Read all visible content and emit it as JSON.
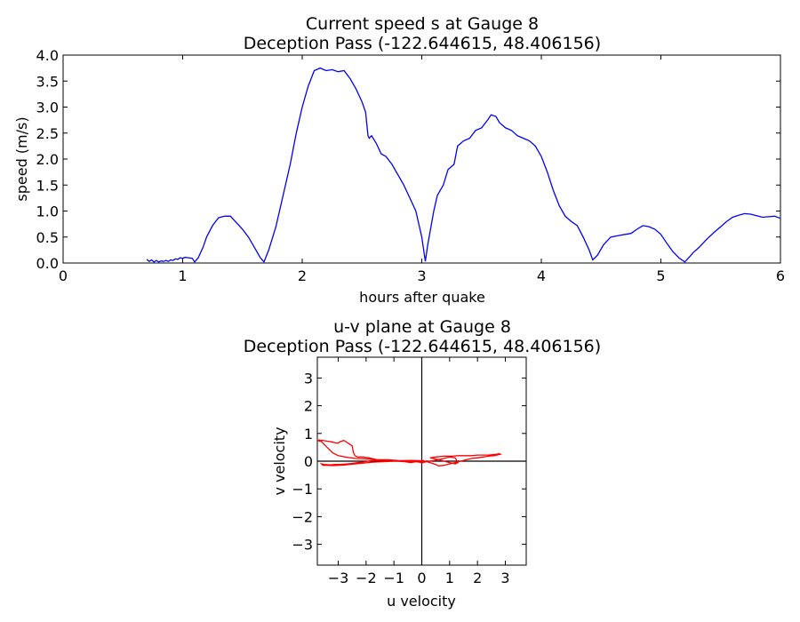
{
  "chart_data": [
    {
      "type": "line",
      "title": "Current speed s at Gauge 8",
      "subtitle": "Deception Pass  (-122.644615, 48.406156)",
      "xlabel": "hours after quake",
      "ylabel": "speed (m/s)",
      "xlim": [
        0,
        6
      ],
      "ylim": [
        0,
        4
      ],
      "xticks": [
        "0",
        "1",
        "2",
        "3",
        "4",
        "5",
        "6"
      ],
      "yticks": [
        "0.0",
        "0.5",
        "1.0",
        "1.5",
        "2.0",
        "2.5",
        "3.0",
        "3.5",
        "4.0"
      ],
      "grid": false,
      "line_color": "#0000ff",
      "series": [
        {
          "x": [
            0.7,
            0.72,
            0.74,
            0.76,
            0.78,
            0.8,
            0.82,
            0.84,
            0.86,
            0.88,
            0.9,
            0.92,
            0.94,
            0.96,
            0.98,
            1.0,
            1.02,
            1.05,
            1.08,
            1.1,
            1.13,
            1.17,
            1.2,
            1.25,
            1.3,
            1.35,
            1.4,
            1.44,
            1.5,
            1.55,
            1.6,
            1.65,
            1.68,
            1.72,
            1.78,
            1.85,
            1.9,
            1.95,
            2.0,
            2.05,
            2.1,
            2.15,
            2.2,
            2.25,
            2.3,
            2.35,
            2.4,
            2.45,
            2.5,
            2.53,
            2.55,
            2.56,
            2.58,
            2.62,
            2.66,
            2.7,
            2.75,
            2.8,
            2.85,
            2.9,
            2.95,
            3.0,
            3.03,
            3.05,
            3.1,
            3.13,
            3.18,
            3.22,
            3.27,
            3.3,
            3.35,
            3.4,
            3.45,
            3.5,
            3.55,
            3.58,
            3.62,
            3.65,
            3.7,
            3.75,
            3.8,
            3.85,
            3.9,
            3.95,
            4.0,
            4.05,
            4.1,
            4.15,
            4.2,
            4.25,
            4.3,
            4.35,
            4.4,
            4.43,
            4.47,
            4.52,
            4.58,
            4.65,
            4.7,
            4.75,
            4.8,
            4.85,
            4.9,
            4.95,
            5.0,
            5.05,
            5.1,
            5.15,
            5.2,
            5.24,
            5.27,
            5.32,
            5.38,
            5.45,
            5.5,
            5.55,
            5.6,
            5.65,
            5.7,
            5.75,
            5.8,
            5.85,
            5.9,
            5.95,
            6.0
          ],
          "y": [
            0.07,
            0.03,
            0.06,
            0.02,
            0.05,
            0.02,
            0.04,
            0.03,
            0.05,
            0.03,
            0.06,
            0.05,
            0.08,
            0.07,
            0.1,
            0.09,
            0.11,
            0.1,
            0.09,
            0.02,
            0.1,
            0.3,
            0.5,
            0.72,
            0.87,
            0.9,
            0.9,
            0.8,
            0.65,
            0.5,
            0.3,
            0.1,
            0.02,
            0.25,
            0.7,
            1.4,
            1.9,
            2.5,
            3.0,
            3.4,
            3.7,
            3.75,
            3.7,
            3.72,
            3.68,
            3.7,
            3.55,
            3.35,
            3.1,
            2.9,
            2.45,
            2.4,
            2.45,
            2.3,
            2.1,
            2.05,
            1.9,
            1.7,
            1.5,
            1.25,
            1.0,
            0.5,
            0.03,
            0.35,
            1.0,
            1.3,
            1.5,
            1.8,
            1.9,
            2.25,
            2.35,
            2.4,
            2.55,
            2.6,
            2.75,
            2.85,
            2.82,
            2.7,
            2.6,
            2.55,
            2.45,
            2.4,
            2.35,
            2.25,
            2.05,
            1.75,
            1.4,
            1.1,
            0.9,
            0.8,
            0.72,
            0.5,
            0.25,
            0.06,
            0.15,
            0.35,
            0.5,
            0.53,
            0.55,
            0.57,
            0.65,
            0.72,
            0.7,
            0.65,
            0.55,
            0.38,
            0.22,
            0.1,
            0.02,
            0.12,
            0.2,
            0.3,
            0.45,
            0.6,
            0.7,
            0.8,
            0.88,
            0.92,
            0.95,
            0.94,
            0.91,
            0.88,
            0.89,
            0.9,
            0.86
          ]
        }
      ]
    },
    {
      "type": "line",
      "title": "u-v plane at Gauge 8",
      "subtitle": "Deception Pass  (-122.644615, 48.406156)",
      "xlabel": "u velocity",
      "ylabel": "v velocity",
      "xlim": [
        -3.75,
        3.75
      ],
      "ylim": [
        -3.75,
        3.75
      ],
      "xticks": [
        "−3",
        "−2",
        "−1",
        "0",
        "1",
        "2",
        "3"
      ],
      "yticks": [
        "−3",
        "−2",
        "−1",
        "0",
        "1",
        "2",
        "3"
      ],
      "grid": false,
      "axis_lines": true,
      "line_color": "#ff0000",
      "series": [
        {
          "u": [
            0.0,
            0.05,
            -0.05,
            0.08,
            -0.05,
            0.1,
            0.05,
            0.02,
            -0.1,
            -0.4,
            -0.8,
            -1.2,
            -1.6,
            -2.0,
            -2.4,
            -2.75,
            -3.0,
            -3.2,
            -3.4,
            -3.55,
            -3.65,
            -3.7,
            -3.68,
            -3.72,
            -3.66,
            -3.6,
            -3.5,
            -3.4,
            -3.25,
            -3.1,
            -3.0,
            -2.95,
            -2.85,
            -2.8,
            -2.65,
            -2.5,
            -2.45,
            -2.4,
            -2.3,
            -2.1,
            -1.9,
            -1.6,
            -1.3,
            -1.0,
            -0.6,
            -0.2,
            0.0,
            0.3,
            0.6,
            0.8,
            1.0,
            1.2,
            1.3,
            1.2,
            1.0,
            0.8,
            0.6,
            0.4,
            0.3,
            0.5,
            0.8,
            1.1,
            1.3,
            1.4,
            1.5,
            1.6,
            1.8,
            2.0,
            2.2,
            2.4,
            2.6,
            2.75,
            2.8,
            2.78,
            2.82,
            2.7,
            2.6,
            2.4,
            2.2,
            2.0,
            1.8,
            1.6,
            1.4,
            1.2,
            1.0,
            0.8,
            0.6,
            0.5,
            0.3,
            0.1,
            0.0,
            -0.2,
            -0.4,
            -0.6,
            -0.9,
            -1.2,
            -1.5,
            -1.8,
            -2.1,
            -2.3,
            -2.5,
            -2.7,
            -2.9,
            -3.1,
            -3.3,
            -3.5,
            -3.6,
            -3.55,
            -3.4,
            -3.2,
            -3.0,
            -2.8,
            -2.6,
            -2.4,
            -2.2,
            -2.0,
            -1.8,
            -1.6,
            -1.4,
            -1.2,
            -1.0,
            -0.8,
            -0.6,
            -0.4,
            -0.2,
            0.0
          ],
          "v": [
            0.0,
            0.02,
            -0.02,
            0.03,
            0.01,
            -0.03,
            -0.05,
            0.01,
            0.02,
            0.03,
            0.02,
            0.05,
            0.05,
            0.08,
            0.1,
            0.15,
            0.2,
            0.3,
            0.5,
            0.65,
            0.75,
            0.78,
            0.76,
            0.74,
            0.72,
            0.75,
            0.74,
            0.72,
            0.7,
            0.66,
            0.65,
            0.7,
            0.73,
            0.75,
            0.65,
            0.55,
            0.3,
            0.2,
            0.15,
            0.15,
            0.12,
            0.05,
            0.03,
            0.02,
            0.01,
            -0.02,
            -0.05,
            0.0,
            0.05,
            0.1,
            0.15,
            0.12,
            -0.05,
            -0.1,
            -0.05,
            0.0,
            0.05,
            0.1,
            0.12,
            0.15,
            0.18,
            0.18,
            0.2,
            0.2,
            0.2,
            0.2,
            0.2,
            0.22,
            0.22,
            0.22,
            0.24,
            0.26,
            0.28,
            0.27,
            0.25,
            0.22,
            0.2,
            0.18,
            0.15,
            0.12,
            0.1,
            0.05,
            0.0,
            -0.05,
            -0.1,
            -0.15,
            -0.17,
            -0.12,
            -0.05,
            0.0,
            0.02,
            -0.02,
            -0.05,
            -0.02,
            0.0,
            0.02,
            0.03,
            0.02,
            -0.03,
            -0.05,
            -0.08,
            -0.1,
            -0.12,
            -0.12,
            -0.13,
            -0.12,
            -0.1,
            -0.15,
            -0.15,
            -0.16,
            -0.15,
            -0.14,
            -0.12,
            -0.1,
            -0.08,
            -0.06,
            -0.04,
            -0.03,
            -0.02,
            -0.01,
            0.0,
            0.0,
            0.01,
            0.0,
            0.0,
            0.0
          ]
        }
      ]
    }
  ]
}
